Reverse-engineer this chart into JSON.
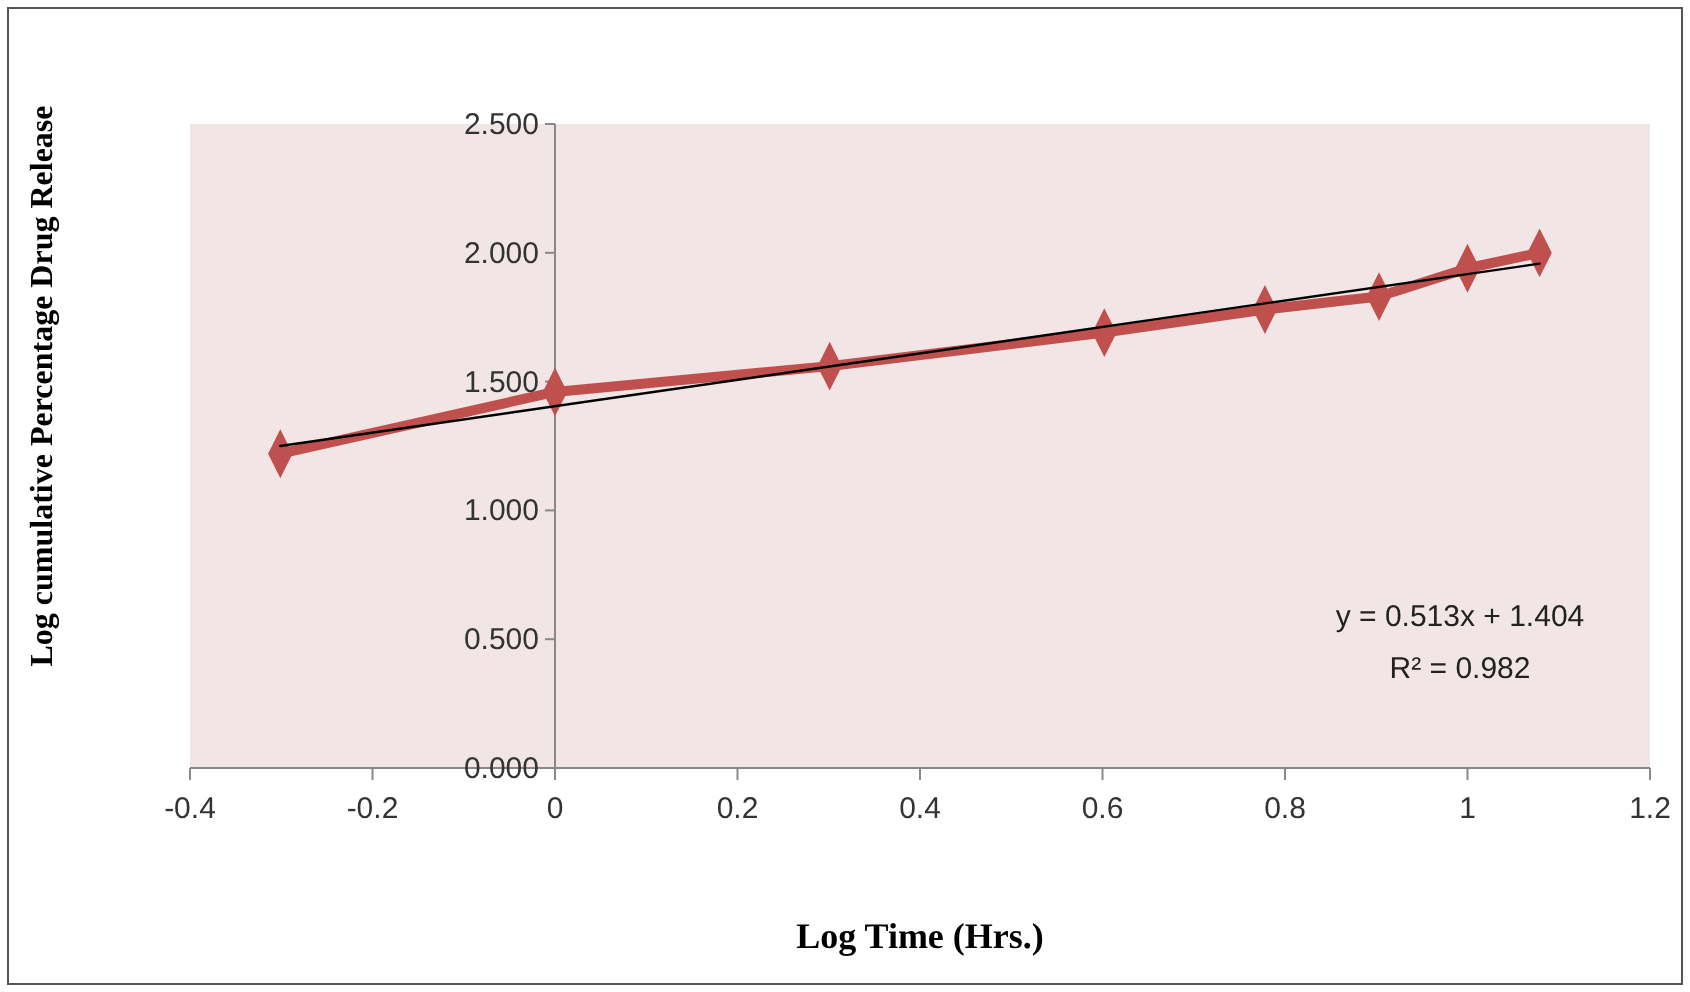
{
  "chart_data": {
    "type": "line",
    "xlabel": "Log Time (Hrs.)",
    "ylabel": "Log cumulative Percentage Drug Release",
    "xlim": [
      -0.4,
      1.2
    ],
    "xticks": [
      -0.4,
      -0.2,
      0,
      0.2,
      0.4,
      0.6,
      0.8,
      1,
      1.2
    ],
    "ylim": [
      0,
      2.5
    ],
    "yticks": [
      {
        "value": 0,
        "label": "0.000"
      },
      {
        "value": 0.5,
        "label": "0.500"
      },
      {
        "value": 1,
        "label": "1.000"
      },
      {
        "value": 1.5,
        "label": "1.500"
      },
      {
        "value": 2,
        "label": "2.000"
      },
      {
        "value": 2.5,
        "label": "2.500"
      }
    ],
    "grid": false,
    "series": [
      {
        "color": "#c0504d",
        "marker": "diamond",
        "x": [
          -0.301,
          0,
          0.301,
          0.602,
          0.778,
          0.903,
          1,
          1.079
        ],
        "values": [
          1.22,
          1.46,
          1.56,
          1.69,
          1.78,
          1.83,
          1.94,
          2.0
        ]
      },
      {
        "type": "line",
        "color": "#000000",
        "marker": "none",
        "x": [
          -0.301,
          1.079
        ],
        "values": [
          1.25,
          1.958
        ]
      }
    ],
    "annotations": [
      "y = 0.513x + 1.404",
      "R² = 0.982"
    ]
  }
}
